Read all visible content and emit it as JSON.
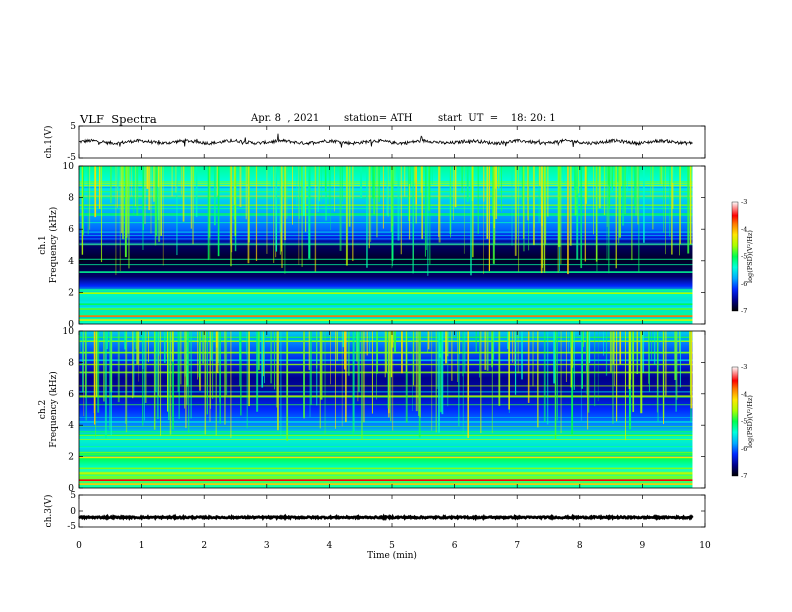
{
  "header": {
    "title": "VLF  Spectra",
    "date": "Apr. 8  , 2021",
    "station": "station= ATH",
    "start": "start  UT  =    18: 20: 1"
  },
  "chart_data": [
    {
      "type": "line",
      "name": "ch1-waveform",
      "ylabel": "ch.1(V)",
      "ylim": [
        -5,
        5
      ],
      "yticks": [
        "5",
        "-5"
      ],
      "xlim": [
        0,
        10
      ],
      "data_extent_min": [
        0,
        9.8
      ],
      "approx_level_v": 0
    },
    {
      "type": "heatmap",
      "name": "ch1-spectrogram",
      "ylabel": "ch.1\nFrequency  (kHz)",
      "ylim": [
        0,
        10
      ],
      "yticks": [
        "0",
        "2",
        "4",
        "6",
        "8",
        "10"
      ],
      "xlim": [
        0,
        10
      ],
      "data_extent_min": [
        0,
        9.8
      ],
      "colorbar": {
        "label": "log(PSD)(V²/Hz)",
        "range": [
          -7,
          -3
        ],
        "ticks": [
          "-3",
          "-4",
          "-5",
          "-6",
          "-7"
        ]
      }
    },
    {
      "type": "heatmap",
      "name": "ch2-spectrogram",
      "ylabel": "ch.2\nFrequency  (kHz)",
      "ylim": [
        0,
        10
      ],
      "yticks": [
        "0",
        "2",
        "4",
        "6",
        "8",
        "10"
      ],
      "xlim": [
        0,
        10
      ],
      "data_extent_min": [
        0,
        9.8
      ],
      "colorbar": {
        "label": "log(PSD)(V²/Hz)",
        "range": [
          -7,
          -3
        ],
        "ticks": [
          "-3",
          "-4",
          "-5",
          "-6",
          "-7"
        ]
      }
    },
    {
      "type": "line",
      "name": "ch3-waveform",
      "ylabel": "ch.3(V)",
      "ylim": [
        -5,
        5
      ],
      "yticks": [
        "5",
        "0",
        "-5"
      ],
      "xlim": [
        0,
        10
      ],
      "data_extent_min": [
        0,
        9.8
      ],
      "approx_level_v": -2
    }
  ],
  "xaxis": {
    "label": "Time  (min)",
    "ticks": [
      "0",
      "1",
      "2",
      "3",
      "4",
      "5",
      "6",
      "7",
      "8",
      "9",
      "10"
    ]
  }
}
